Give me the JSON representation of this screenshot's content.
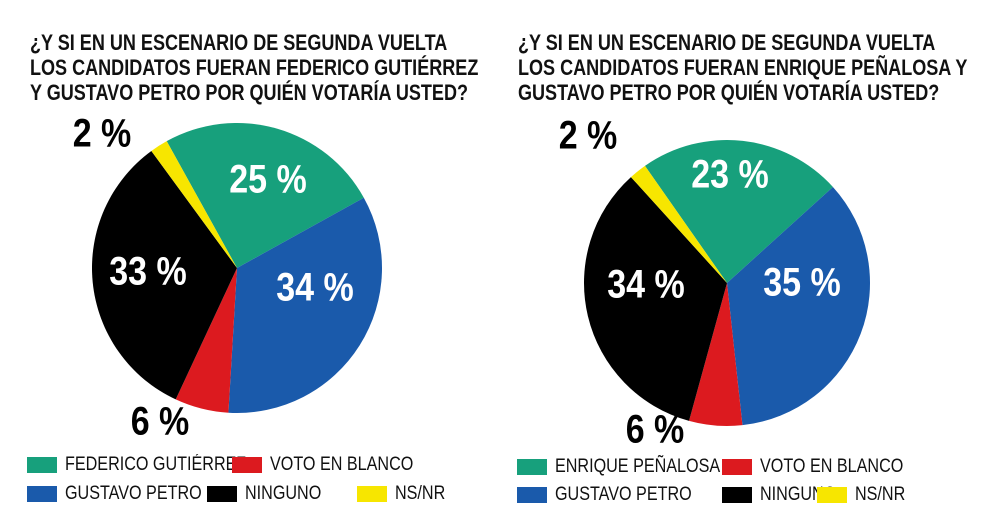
{
  "colors": {
    "green": "#17a07c",
    "blue": "#1a5aab",
    "red": "#dc1a1f",
    "black": "#000000",
    "yellow": "#f7e600"
  },
  "chart_data": [
    {
      "type": "pie",
      "title_lines": [
        "¿Y SI EN UN ESCENARIO DE SEGUNDA VUELTA",
        "LOS CANDIDATOS FUERAN FEDERICO GUTIÉRREZ",
        "Y GUSTAVO PETRO POR QUIÉN VOTARÍA USTED?"
      ],
      "slices": [
        {
          "name": "FEDERICO GUTIÉRREZ",
          "value": 25,
          "label": "25 %",
          "color": "#17a07c"
        },
        {
          "name": "GUSTAVO PETRO",
          "value": 34,
          "label": "34 %",
          "color": "#1a5aab"
        },
        {
          "name": "VOTO EN BLANCO",
          "value": 6,
          "label": "6 %",
          "color": "#dc1a1f"
        },
        {
          "name": "NINGUNO",
          "value": 33,
          "label": "33 %",
          "color": "#000000"
        },
        {
          "name": "NS/NR",
          "value": 2,
          "label": "2 %",
          "color": "#f7e600"
        }
      ],
      "legend": "bottom"
    },
    {
      "type": "pie",
      "title_lines": [
        "¿Y SI EN UN ESCENARIO DE SEGUNDA VUELTA",
        "LOS CANDIDATOS FUERAN ENRIQUE PEÑALOSA Y",
        "GUSTAVO PETRO POR QUIÉN VOTARÍA USTED?"
      ],
      "slices": [
        {
          "name": "ENRIQUE PEÑALOSA",
          "value": 23,
          "label": "23 %",
          "color": "#17a07c"
        },
        {
          "name": "GUSTAVO PETRO",
          "value": 35,
          "label": "35 %",
          "color": "#1a5aab"
        },
        {
          "name": "VOTO EN BLANCO",
          "value": 6,
          "label": "6 %",
          "color": "#dc1a1f"
        },
        {
          "name": "NINGUNO",
          "value": 34,
          "label": "34 %",
          "color": "#000000"
        },
        {
          "name": "NS/NR",
          "value": 2,
          "label": "2 %",
          "color": "#f7e600"
        }
      ],
      "legend": "bottom"
    }
  ]
}
